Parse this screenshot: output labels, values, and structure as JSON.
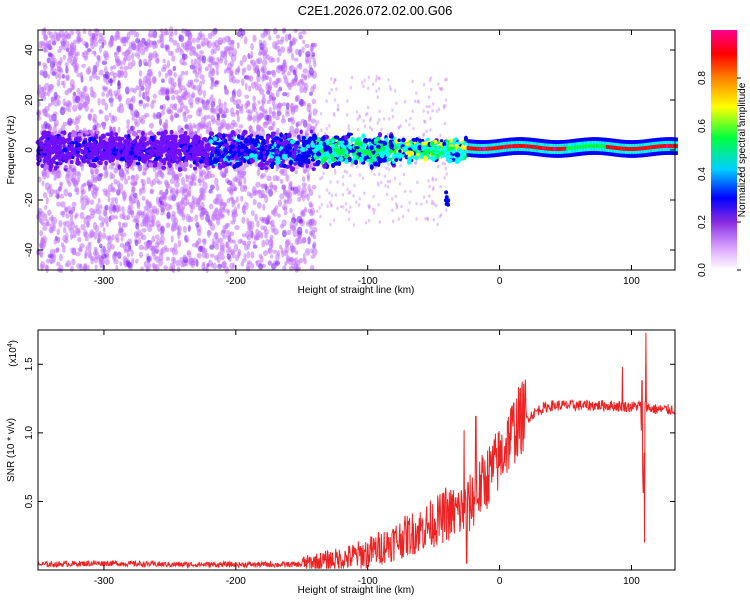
{
  "title": "C2E1.2026.072.02.00.G06",
  "chart_data": [
    {
      "type": "heatmap",
      "xlabel": "Height of straight line (km)",
      "ylabel": "Frequency (Hz)",
      "xlim": [
        -350,
        133
      ],
      "ylim": [
        -48,
        48
      ],
      "xticks": [
        -300,
        -200,
        -100,
        0,
        100
      ],
      "yticks": [
        -40,
        -20,
        0,
        20,
        40
      ],
      "xtick_labels": [
        "-300",
        "-200",
        "-100",
        "0",
        "100"
      ],
      "ytick_labels": [
        "-40",
        "-20",
        "0",
        "20",
        "40"
      ],
      "colorbar": {
        "label": "Normalized spectral amplitude",
        "range": [
          0,
          1
        ],
        "ticks": [
          0.0,
          0.2,
          0.4,
          0.6,
          0.8
        ],
        "tick_labels": [
          "0.0",
          "0.2",
          "0.4",
          "0.6",
          "0.8"
        ],
        "colormap": [
          "#ffffff",
          "#c070ff",
          "#7010ff",
          "#0000ff",
          "#00ffff",
          "#00ff40",
          "#ffff00",
          "#ff8000",
          "#ff0000",
          "#ff00a0"
        ]
      },
      "features": {
        "noise_region_x": [
          -350,
          -140
        ],
        "central_band_freq": [
          -8,
          8
        ],
        "converged_tone_start_x": -25,
        "converged_tone_freq": 1
      }
    },
    {
      "type": "line",
      "xlabel": "Height of straight line (km)",
      "ylabel": "SNR (10 * v/v)",
      "multiplier_label": "(x10",
      "multiplier_exp": "4",
      "xlim": [
        -350,
        133
      ],
      "ylim": [
        0,
        1.75
      ],
      "xticks": [
        -300,
        -200,
        -100,
        0,
        100
      ],
      "yticks": [
        0.5,
        1.0,
        1.5
      ],
      "xtick_labels": [
        "-300",
        "-200",
        "-100",
        "0",
        "100"
      ],
      "ytick_labels": [
        "0.5",
        "1.0",
        "1.5"
      ],
      "series_color": "#ee2222",
      "series": [
        {
          "name": "SNR",
          "x": [
            -350,
            -300,
            -250,
            -200,
            -150,
            -120,
            -100,
            -80,
            -60,
            -40,
            -25,
            -10,
            0,
            10,
            20,
            30,
            40,
            60,
            80,
            100,
            107,
            109,
            110,
            111,
            113,
            120,
            133
          ],
          "y": [
            0.04,
            0.05,
            0.04,
            0.04,
            0.04,
            0.06,
            0.1,
            0.18,
            0.26,
            0.36,
            0.4,
            0.62,
            0.76,
            0.96,
            1.1,
            1.17,
            1.2,
            1.2,
            1.2,
            1.19,
            1.2,
            0.5,
            1.2,
            1.2,
            1.18,
            1.17,
            1.17
          ],
          "spikes": [
            {
              "x": -41,
              "y": 0.6
            },
            {
              "x": -27,
              "y": 1.02
            },
            {
              "x": -25,
              "y": 0.05
            },
            {
              "x": -18,
              "y": 1.12
            },
            {
              "x": 93,
              "y": 1.48
            },
            {
              "x": 108,
              "y": 1.38
            },
            {
              "x": 110,
              "y": 0.2
            },
            {
              "x": 111,
              "y": 1.73
            }
          ]
        }
      ]
    }
  ]
}
